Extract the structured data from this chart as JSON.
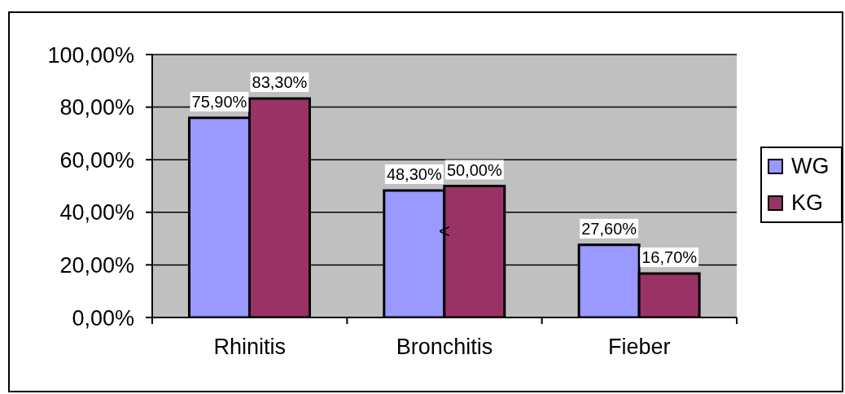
{
  "chart_data": {
    "type": "bar",
    "categories": [
      "Rhinitis",
      "Bronchitis",
      "Fieber"
    ],
    "series": [
      {
        "name": "WG",
        "color": "#9999ff",
        "values": [
          75.9,
          48.3,
          27.6
        ],
        "value_labels": [
          "75,90%",
          "48,30%",
          "27,60%"
        ]
      },
      {
        "name": "KG",
        "color": "#993366",
        "values": [
          83.3,
          50.0,
          16.7
        ],
        "value_labels": [
          "83,30%",
          "50,00%",
          "16,70%"
        ]
      }
    ],
    "ylim": [
      0,
      100
    ],
    "yticks": [
      {
        "value": 0,
        "label": "0,00%"
      },
      {
        "value": 20,
        "label": "20,00%"
      },
      {
        "value": 40,
        "label": "40,00%"
      },
      {
        "value": 60,
        "label": "60,00%"
      },
      {
        "value": 80,
        "label": "80,00%"
      },
      {
        "value": 100,
        "label": "100,00%"
      }
    ],
    "grid": "y",
    "legend": "right",
    "annotations": [
      {
        "text": "<",
        "x": "Bronchitis",
        "y": 33
      }
    ]
  }
}
